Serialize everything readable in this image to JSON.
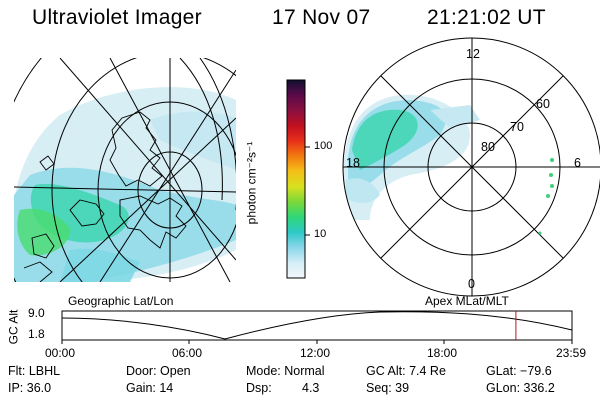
{
  "header": {
    "instrument": "Ultraviolet Imager",
    "date": "17 Nov 07",
    "time": "21:21:02 UT"
  },
  "colorbar": {
    "unit_label": "photon cm⁻²s⁻¹",
    "ticks": [
      "100",
      "10"
    ],
    "colors": [
      "#101030",
      "#5a0a4a",
      "#8a1040",
      "#c01020",
      "#e8301a",
      "#f27a10",
      "#f4c018",
      "#d8e020",
      "#7cd83a",
      "#2fd878",
      "#2ec9c6",
      "#8ad6ea",
      "#d4eef6",
      "#f2f7fa"
    ]
  },
  "left_map": {
    "caption": "Geographic Lat/Lon"
  },
  "right_map": {
    "caption": "Apex MLat/MLT",
    "lat_labels": [
      "80",
      "70",
      "60"
    ],
    "mlt_labels": {
      "noon": "12",
      "dusk": "18",
      "dawn": "6",
      "midnight": "0"
    }
  },
  "altitude_plot": {
    "ylabel": "GC Alt",
    "yticks": [
      "9.0",
      "1.8"
    ],
    "xticks": [
      "00:00",
      "06:00",
      "12:00",
      "18:00",
      "23:59"
    ],
    "marker_time_fraction": 0.89,
    "marker_color": "#c01020"
  },
  "info": {
    "filter": "Flt: LBHL",
    "ip": "IP: 36.0",
    "door": "Door: Open",
    "gain": "Gain: 14",
    "mode": "Mode: Normal",
    "dsp_label": "Dsp:",
    "dsp_value": "4.3",
    "gc_alt": "GC Alt: 7.4 Re",
    "seq": "Seq: 39",
    "glat": "GLat: −79.6",
    "glon": "GLon: 336.2"
  }
}
